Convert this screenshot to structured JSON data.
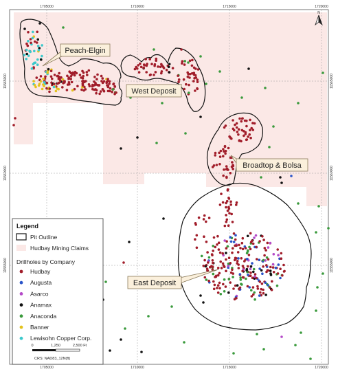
{
  "map": {
    "grid_x_labels": [
      "1705000",
      "1710000",
      "1715000",
      "1720000"
    ],
    "grid_y_labels": [
      "11565000",
      "11560000",
      "11555000"
    ],
    "callouts": [
      "Peach-Elgin",
      "West Deposit",
      "Broadtop & Bolsa",
      "East Deposit"
    ],
    "north_arrow": "N",
    "colors": {
      "claims_fill": "#fbe8e6",
      "pit_outline": "#111111",
      "hudbay": "#a11d2a",
      "augusta": "#2a54c9",
      "asarco": "#b44ac8",
      "anamax": "#111111",
      "anaconda": "#3a9a3c",
      "banner": "#e3c21d",
      "lewisohn": "#3cc9cc"
    }
  },
  "legend": {
    "title": "Legend",
    "pit_outline_label": "Pit Outline",
    "claims_label": "Hudbay Mining Claims",
    "drillholes_title": "Drillholes by Company",
    "companies": [
      "Hudbay",
      "Augusta",
      "Asarco",
      "Anamax",
      "Anaconda",
      "Banner",
      "Lewisohn Copper Corp."
    ],
    "scale_ticks": [
      "0",
      "1,250",
      "2,500 Ft"
    ],
    "crs": "CRS: NAD83_12N(ft)"
  }
}
